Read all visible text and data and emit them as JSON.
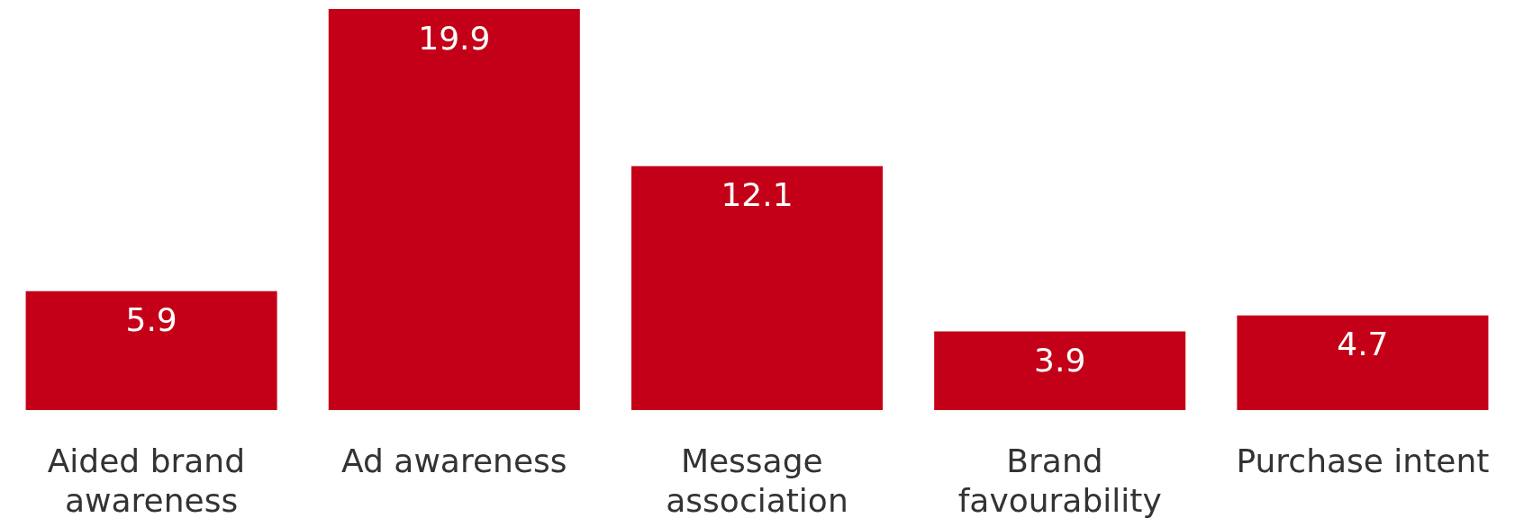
{
  "chart_data": {
    "type": "bar",
    "categories": [
      "Aided brand awareness",
      "Ad awareness",
      "Message association",
      "Brand favourability",
      "Purchase intent"
    ],
    "values": [
      5.9,
      19.9,
      12.1,
      3.9,
      4.7
    ],
    "color": "#c40018",
    "data_labels": true
  }
}
